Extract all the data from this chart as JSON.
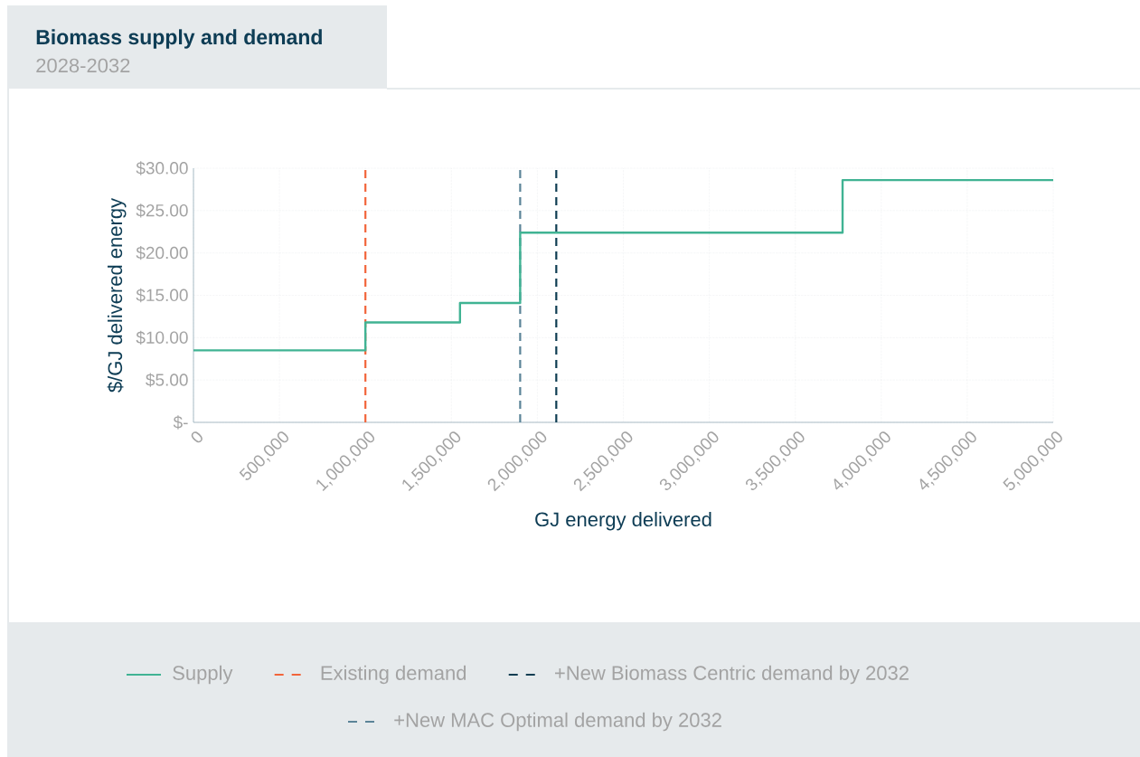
{
  "chart_data": {
    "type": "step",
    "title": "Biomass supply and demand",
    "subtitle": "2028-2032",
    "xlabel": "GJ energy delivered",
    "ylabel": "$/GJ delivered energy",
    "series": [
      {
        "name": "Supply",
        "color": "#40b393",
        "x": [
          0,
          1000000,
          1550000,
          1900000,
          3775000,
          5000000
        ],
        "values": [
          8.5,
          11.8,
          14.1,
          22.4,
          28.6,
          28.6
        ]
      }
    ],
    "ref_lines": [
      {
        "axis": "x",
        "value": 1000000,
        "label": "Existing demand",
        "color": "#f2643a",
        "line_style": "dashed"
      },
      {
        "axis": "x",
        "value": 2110000,
        "label": "+New Biomass Centric demand by 2032",
        "color": "#0f3d52",
        "line_style": "dashed"
      },
      {
        "axis": "x",
        "value": 1900000,
        "label": "+New MAC Optimal demand by 2032",
        "color": "#5b8498",
        "line_style": "dashed"
      }
    ],
    "xlim": [
      0,
      5000000
    ],
    "ylim": [
      0,
      30
    ],
    "xticks": [
      0,
      {
        "value": 500000,
        "label": "500,000"
      },
      {
        "value": 1000000,
        "label": "1,000,000"
      },
      {
        "value": 1500000,
        "label": "1,500,000"
      },
      {
        "value": 2000000,
        "label": "2,000,000"
      },
      {
        "value": 2500000,
        "label": "2,500,000"
      },
      {
        "value": 3000000,
        "label": "3,000,000"
      },
      {
        "value": 3500000,
        "label": "3,500,000"
      },
      {
        "value": 4000000,
        "label": "4,000,000"
      },
      {
        "value": 4500000,
        "label": "4,500,000"
      },
      {
        "value": 5000000,
        "label": "5,000,000"
      }
    ],
    "yticks": [
      {
        "value": 0,
        "label": "$-"
      },
      {
        "value": 5,
        "label": "$5.00"
      },
      {
        "value": 10,
        "label": "$10.00"
      },
      {
        "value": 15,
        "label": "$15.00"
      },
      {
        "value": 20,
        "label": "$20.00"
      },
      {
        "value": 25,
        "label": "$25.00"
      },
      {
        "value": 30,
        "label": "$30.00"
      }
    ],
    "grid": true,
    "legend": "bottom",
    "line_style": "solid",
    "marker": "none"
  }
}
